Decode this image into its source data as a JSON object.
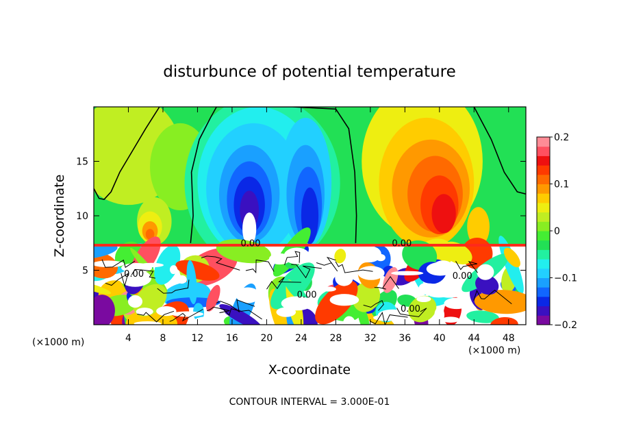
{
  "chart_data": {
    "type": "heatmap",
    "title": "disturbunce of potential temperature",
    "xlabel": "X-coordinate",
    "ylabel": "Z-coordinate",
    "x_unit": "(×1000 m)",
    "y_unit": "(×1000 m)",
    "xlim": [
      0,
      50
    ],
    "ylim": [
      0,
      20
    ],
    "xticks": [
      4,
      8,
      12,
      16,
      20,
      24,
      28,
      32,
      36,
      40,
      44,
      48
    ],
    "yticks": [
      5,
      10,
      15
    ],
    "colorbar": {
      "min": -0.2,
      "max": 0.2,
      "ticks": [
        -0.2,
        -0.1,
        0,
        0.1,
        0.2
      ],
      "tick_labels": [
        "−0.2",
        "−0.1",
        "0",
        "0.1",
        "0.2"
      ],
      "colors": [
        "#7a0aa0",
        "#3a10c0",
        "#0a28e6",
        "#1166ff",
        "#1aa0ff",
        "#22d0ff",
        "#22eeee",
        "#22f0a0",
        "#22e055",
        "#44ee33",
        "#88ee22",
        "#c0ee22",
        "#eeee11",
        "#ffcc00",
        "#ff9900",
        "#ff6a00",
        "#ff3a00",
        "#ee1010",
        "#ff5060",
        "#ff8c96"
      ]
    },
    "contour_labels": [
      "0.00",
      "0.00",
      "0.00",
      "0.00",
      "0.00",
      "0.00"
    ],
    "contour_interval": "CONTOUR INTERVAL = 3.000E-01",
    "features": [
      {
        "type": "cold_anomaly",
        "x_center": 18,
        "z_center": 12,
        "value": -0.2
      },
      {
        "type": "cold_anomaly",
        "x_center": 24.5,
        "z_center": 11,
        "value": -0.15
      },
      {
        "type": "warm_anomaly",
        "x_center": 39,
        "z_center": 11,
        "value": 0.12
      },
      {
        "type": "warm_anomaly",
        "x_center": 6.5,
        "z_center": 9,
        "value": 0.09
      },
      {
        "type": "boundary_layer",
        "z_top": 7.3,
        "description": "turbulent mixed layer"
      }
    ]
  }
}
